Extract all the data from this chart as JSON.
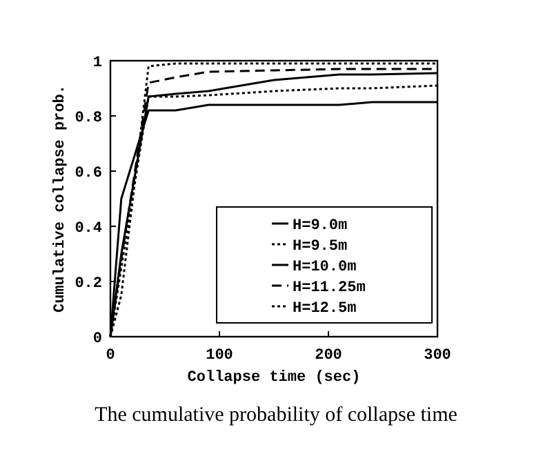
{
  "chart_data": {
    "type": "line",
    "title": "The cumulative probability of collapse time",
    "xlabel": "Collapse time (sec)",
    "ylabel": "Cumulative collapse prob.",
    "xlim": [
      0,
      300
    ],
    "xticks": [
      0,
      100,
      200,
      300
    ],
    "ylim": [
      0,
      1
    ],
    "yticks": [
      0,
      {
        "value": 0.2,
        "label": "0.2"
      },
      {
        "value": 0.4,
        "label": "0.4"
      },
      {
        "value": 0.6,
        "label": "0.6"
      },
      {
        "value": 0.8,
        "label": "0.8"
      },
      1
    ],
    "legend": "bottom right",
    "grid": false,
    "x": [
      0,
      10,
      35,
      60,
      90,
      150,
      210,
      240,
      300
    ],
    "series": [
      {
        "name": "H=9.0m",
        "color": "#000000",
        "line_style": "solid",
        "values": [
          0,
          0.5,
          0.82,
          0.82,
          0.84,
          0.84,
          0.84,
          0.85,
          0.85
        ]
      },
      {
        "name": "H=9.5m",
        "color": "#000000",
        "line_style": "dotted",
        "values": [
          0,
          0.25,
          0.87,
          0.87,
          0.875,
          0.89,
          0.9,
          0.9,
          0.91
        ]
      },
      {
        "name": "H=10.0m",
        "color": "#000000",
        "line_style": "solid",
        "values": [
          0,
          0.3,
          0.87,
          0.88,
          0.89,
          0.93,
          0.95,
          0.95,
          0.955
        ]
      },
      {
        "name": "H=11.25m",
        "color": "#000000",
        "line_style": "dashed",
        "values": [
          0,
          0.28,
          0.92,
          0.94,
          0.96,
          0.965,
          0.97,
          0.97,
          0.97
        ]
      },
      {
        "name": "H=12.5m",
        "color": "#000000",
        "line_style": "dotted",
        "values": [
          0,
          0.15,
          0.98,
          0.99,
          0.99,
          0.99,
          0.99,
          0.99,
          0.99
        ]
      }
    ]
  }
}
